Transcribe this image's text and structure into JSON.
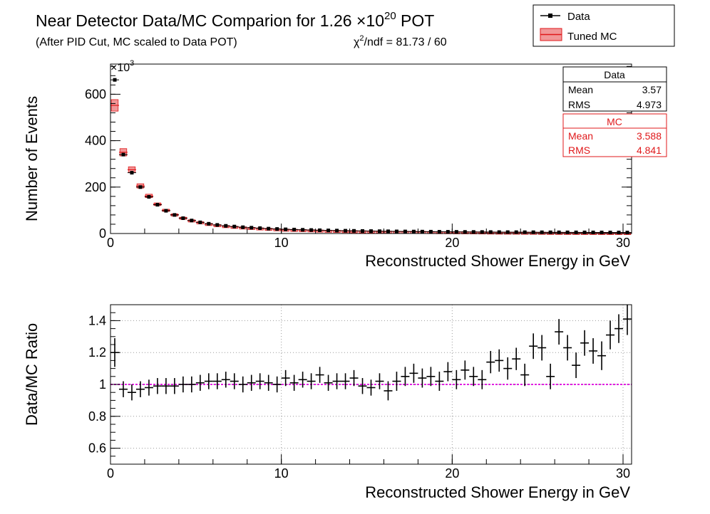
{
  "header": {
    "title_prefix": "Near Detector Data/MC Comparion for 1.26 ",
    "title_times": "×10",
    "title_exponent": "20",
    "title_suffix": " POT",
    "subtitle": "(After PID Cut, MC scaled to Data POT)",
    "chi2_symbol": "χ",
    "chi2_power": "2",
    "chi2_text": "/ndf = 81.73 / 60"
  },
  "legend": {
    "data_label": "Data",
    "mc_label": "Tuned MC"
  },
  "stats": {
    "data": {
      "title": "Data",
      "mean_label": "Mean",
      "mean_value": "3.57",
      "rms_label": "RMS",
      "rms_value": "4.973"
    },
    "mc": {
      "title": "MC",
      "mean_label": "Mean",
      "mean_value": "3.588",
      "rms_label": "RMS",
      "rms_value": "4.841"
    }
  },
  "colors": {
    "data": "#000000",
    "mc": "#e0191b",
    "reference_line": "#e020e0",
    "grid": "#9a9a9a"
  },
  "chart_data": [
    {
      "type": "scatter",
      "title": "Near Detector Data/MC Comparion for 1.26 ×10^20 POT",
      "xlabel": "Reconstructed Shower Energy in GeV",
      "ylabel": "Number of Events",
      "y_multiplier_label": "×10",
      "y_multiplier_exponent": "3",
      "xlim": [
        0,
        30.5
      ],
      "ylim": [
        0,
        730
      ],
      "xticks": [
        0,
        10,
        20,
        30
      ],
      "yticks": [
        0,
        200,
        400,
        600
      ],
      "grid": false,
      "legend_position": "top-right",
      "bin_width": 0.5,
      "x": [
        0.25,
        0.75,
        1.25,
        1.75,
        2.25,
        2.75,
        3.25,
        3.75,
        4.25,
        4.75,
        5.25,
        5.75,
        6.25,
        6.75,
        7.25,
        7.75,
        8.25,
        8.75,
        9.25,
        9.75,
        10.25,
        10.75,
        11.25,
        11.75,
        12.25,
        12.75,
        13.25,
        13.75,
        14.25,
        14.75,
        15.25,
        15.75,
        16.25,
        16.75,
        17.25,
        17.75,
        18.25,
        18.75,
        19.25,
        19.75,
        20.25,
        20.75,
        21.25,
        21.75,
        22.25,
        22.75,
        23.25,
        23.75,
        24.25,
        24.75,
        25.25,
        25.75,
        26.25,
        26.75,
        27.25,
        27.75,
        28.25,
        28.75,
        29.25,
        29.75,
        30.25
      ],
      "series": [
        {
          "name": "Data",
          "values": [
            662,
            340,
            262,
            200,
            158,
            124,
            98,
            80,
            66,
            56,
            48,
            42,
            37,
            33,
            30,
            27,
            25,
            23,
            21,
            19.5,
            18,
            17,
            16,
            15,
            14,
            13.3,
            12.6,
            12,
            11.4,
            10.9,
            10.4,
            9.9,
            9.5,
            9.1,
            8.8,
            8.5,
            8.2,
            7.9,
            7.6,
            7.4,
            7.1,
            6.9,
            6.7,
            6.5,
            6.3,
            6.1,
            5.9,
            5.8,
            5.6,
            5.5,
            5.3,
            5.2,
            5.1,
            5.0,
            4.9,
            4.8,
            4.7,
            4.6,
            4.5,
            4.4,
            4.3
          ]
        },
        {
          "name": "Tuned MC",
          "values": [
            552,
            350,
            275,
            205,
            162,
            126,
            100,
            81,
            67,
            56,
            48,
            41,
            36,
            32,
            29,
            26.5,
            24.5,
            22.5,
            20.7,
            19,
            17.4,
            16.4,
            15.5,
            14.6,
            13.6,
            12.8,
            12.2,
            11.6,
            11,
            10.6,
            10.2,
            9.6,
            9.1,
            8.7,
            8.4,
            8.1,
            7.8,
            7.4,
            7.0,
            6.9,
            6.6,
            6.4,
            6.2,
            6.0,
            5.6,
            5.3,
            5.1,
            5.0,
            4.6,
            4.5,
            4.3,
            4.0,
            3.9,
            3.8,
            3.7,
            3.6,
            3.5,
            3.4,
            3.3,
            3.3,
            3.2
          ]
        }
      ]
    },
    {
      "type": "scatter",
      "xlabel": "Reconstructed Shower Energy in GeV",
      "ylabel": "Data/MC Ratio",
      "xlim": [
        0,
        30.5
      ],
      "ylim": [
        0.5,
        1.5
      ],
      "xticks": [
        0,
        10,
        20,
        30
      ],
      "yticks": [
        0.6,
        0.8,
        1,
        1.2,
        1.4
      ],
      "grid": true,
      "reference_line": 1,
      "bin_width": 0.5,
      "x": [
        0.25,
        0.75,
        1.25,
        1.75,
        2.25,
        2.75,
        3.25,
        3.75,
        4.25,
        4.75,
        5.25,
        5.75,
        6.25,
        6.75,
        7.25,
        7.75,
        8.25,
        8.75,
        9.25,
        9.75,
        10.25,
        10.75,
        11.25,
        11.75,
        12.25,
        12.75,
        13.25,
        13.75,
        14.25,
        14.75,
        15.25,
        15.75,
        16.25,
        16.75,
        17.25,
        17.75,
        18.25,
        18.75,
        19.25,
        19.75,
        20.25,
        20.75,
        21.25,
        21.75,
        22.25,
        22.75,
        23.25,
        23.75,
        24.25,
        24.75,
        25.25,
        25.75,
        26.25,
        26.75,
        27.25,
        27.75,
        28.25,
        28.75,
        29.25,
        29.75,
        30.25
      ],
      "series": [
        {
          "name": "Data",
          "values": [
            1.2,
            0.97,
            0.95,
            0.97,
            0.98,
            0.99,
            0.99,
            0.99,
            1.0,
            1.0,
            1.01,
            1.02,
            1.02,
            1.03,
            1.02,
            1.0,
            1.01,
            1.02,
            1.01,
            1.0,
            1.04,
            1.01,
            1.03,
            1.02,
            1.06,
            1.01,
            1.02,
            1.02,
            1.04,
            0.99,
            0.98,
            1.02,
            0.96,
            1.02,
            1.05,
            1.07,
            1.04,
            1.05,
            1.02,
            1.08,
            1.03,
            1.09,
            1.05,
            1.03,
            1.14,
            1.15,
            1.1,
            1.16,
            1.06,
            1.24,
            1.23,
            1.05,
            1.33,
            1.23,
            1.12,
            1.26,
            1.21,
            1.18,
            1.31,
            1.35,
            1.41
          ],
          "errors": [
            0.09,
            0.05,
            0.05,
            0.05,
            0.05,
            0.05,
            0.05,
            0.05,
            0.05,
            0.05,
            0.05,
            0.05,
            0.05,
            0.05,
            0.05,
            0.05,
            0.05,
            0.05,
            0.05,
            0.05,
            0.05,
            0.05,
            0.05,
            0.05,
            0.05,
            0.05,
            0.05,
            0.05,
            0.05,
            0.05,
            0.05,
            0.05,
            0.06,
            0.06,
            0.06,
            0.06,
            0.06,
            0.06,
            0.06,
            0.06,
            0.06,
            0.06,
            0.06,
            0.06,
            0.07,
            0.07,
            0.07,
            0.07,
            0.07,
            0.08,
            0.08,
            0.08,
            0.08,
            0.08,
            0.08,
            0.08,
            0.08,
            0.09,
            0.09,
            0.09,
            0.1
          ]
        }
      ]
    }
  ]
}
